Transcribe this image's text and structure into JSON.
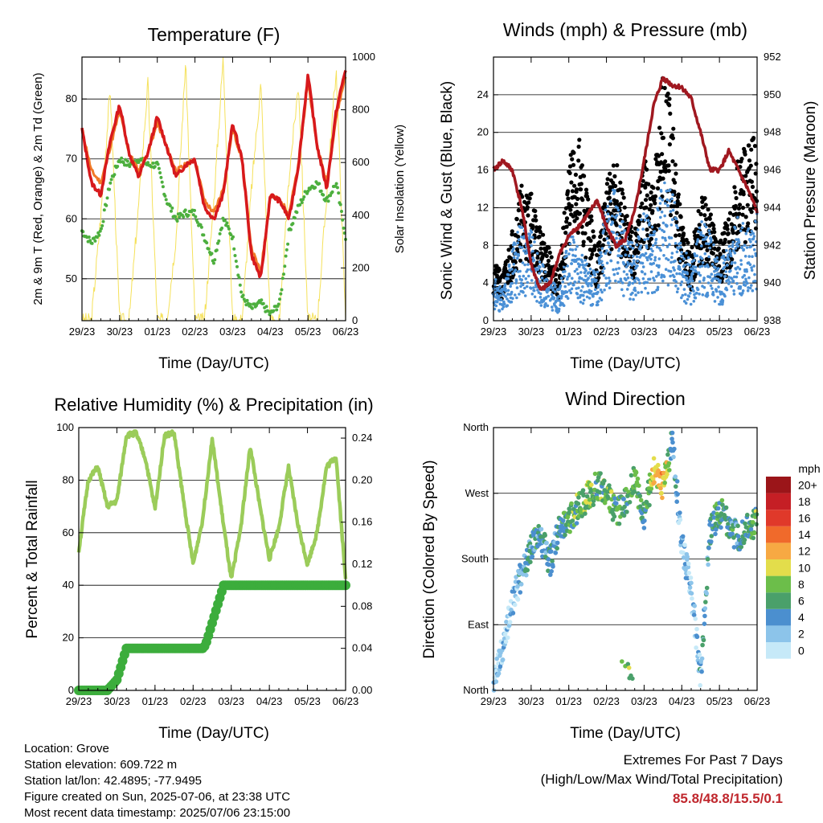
{
  "days": [
    "29/23",
    "30/23",
    "01/23",
    "02/23",
    "03/23",
    "04/23",
    "05/23",
    "06/23"
  ],
  "colors": {
    "temp2m": "#d7191c",
    "temp9m": "#f07a28",
    "dew": "#4daf3e",
    "solar": "#f5e15a",
    "wind": "#4a90d6",
    "gust": "#000000",
    "pressure": "#a01820",
    "rh": "#9bcc5a",
    "precip": "#3cad3c"
  },
  "panels": {
    "temperature": {
      "title": "Temperature (F)",
      "xlabel": "Time (Day/UTC)",
      "ylabel_left": "2m & 9m T (Red, Orange) & 2m Td (Green)",
      "ylabel_right": "Solar Insolation (Yellow)",
      "left_ticks": [
        "50",
        "60",
        "70",
        "80"
      ],
      "right_ticks": [
        "0",
        "200",
        "400",
        "600",
        "800",
        "1000"
      ]
    },
    "winds": {
      "title": "Winds (mph) & Pressure (mb)",
      "xlabel": "Time (Day/UTC)",
      "ylabel_left": "Sonic Wind & Gust (Blue, Black)",
      "ylabel_right": "Station Pressure (Maroon)",
      "left_ticks": [
        "0",
        "4",
        "8",
        "12",
        "16",
        "20",
        "24"
      ],
      "right_ticks": [
        "938",
        "940",
        "942",
        "944",
        "946",
        "948",
        "950",
        "952"
      ]
    },
    "humidity": {
      "title": "Relative Humidity (%) & Precipitation (in)",
      "xlabel": "Time (Day/UTC)",
      "ylabel_left": "Percent & Total Rainfall",
      "left_ticks": [
        "0",
        "20",
        "40",
        "60",
        "80",
        "100"
      ],
      "right_ticks": [
        "0.00",
        "0.04",
        "0.08",
        "0.12",
        "0.16",
        "0.20",
        "0.24"
      ]
    },
    "direction": {
      "title": "Wind Direction",
      "xlabel": "Time (Day/UTC)",
      "ylabel_left": "Direction (Colored By Speed)",
      "left_ticks": [
        "North",
        "East",
        "South",
        "West",
        "North"
      ],
      "legend_title": "mph",
      "legend_labels": [
        "0",
        "2",
        "4",
        "6",
        "8",
        "10",
        "12",
        "14",
        "16",
        "18",
        "20+"
      ],
      "legend_colors": [
        "#c6e9f8",
        "#8cc4ea",
        "#4b8fcf",
        "#4aa06a",
        "#6cbe4a",
        "#e3dd4b",
        "#f7a943",
        "#f06a2b",
        "#e0392a",
        "#c51f25",
        "#9b1519"
      ]
    }
  },
  "chart_data": [
    {
      "type": "line",
      "title": "Temperature (F)",
      "xlabel": "Time (Day/UTC)",
      "ylabel": "2m & 9m T (Red, Orange) & 2m Td (Green)",
      "ylabel_right": "Solar Insolation (Yellow)",
      "x": [
        0,
        0.25,
        0.5,
        0.75,
        1,
        1.25,
        1.5,
        1.75,
        2,
        2.25,
        2.5,
        2.75,
        3,
        3.25,
        3.5,
        3.75,
        4,
        4.25,
        4.5,
        4.75,
        5,
        5.25,
        5.5,
        5.75,
        6,
        6.25,
        6.5,
        6.75,
        7
      ],
      "ylim": [
        43,
        87
      ],
      "ylim_right": [
        0,
        1000
      ],
      "series": [
        {
          "name": "2m T",
          "values": [
            75,
            66,
            64,
            73,
            79,
            71,
            67,
            71,
            77,
            72,
            67,
            69,
            70,
            62,
            60,
            64,
            76,
            70,
            54,
            50,
            64,
            63,
            60,
            69,
            84,
            72,
            65,
            78,
            85
          ]
        },
        {
          "name": "9m T",
          "values": [
            75,
            68,
            66,
            72,
            78,
            71,
            68,
            71,
            76,
            72,
            68,
            69,
            70,
            63,
            61,
            65,
            75,
            70,
            55,
            51,
            64,
            63,
            61,
            69,
            83,
            72,
            66,
            77,
            84
          ]
        },
        {
          "name": "2m Td",
          "values": [
            58,
            56,
            58,
            66,
            70,
            69,
            70,
            69,
            69,
            63,
            60,
            61,
            61,
            57,
            53,
            60,
            57,
            47,
            45,
            46,
            44,
            46,
            58,
            62,
            65,
            66,
            63,
            66,
            57
          ]
        },
        {
          "name": "Solar Insolation",
          "values": [
            0,
            0,
            400,
            880,
            0,
            0,
            430,
            900,
            0,
            0,
            320,
            980,
            0,
            0,
            450,
            1000,
            0,
            0,
            500,
            900,
            0,
            0,
            550,
            900,
            0,
            0,
            480,
            960,
            0
          ]
        }
      ]
    },
    {
      "type": "scatter",
      "title": "Winds (mph) & Pressure (mb)",
      "xlabel": "Time (Day/UTC)",
      "ylabel": "Sonic Wind & Gust (Blue, Black)",
      "ylabel_right": "Station Pressure (Maroon)",
      "x": [
        0,
        0.25,
        0.5,
        0.75,
        1,
        1.25,
        1.5,
        1.75,
        2,
        2.25,
        2.5,
        2.75,
        3,
        3.25,
        3.5,
        3.75,
        4,
        4.25,
        4.5,
        4.75,
        5,
        5.25,
        5.5,
        5.75,
        6,
        6.25,
        6.5,
        6.75,
        7
      ],
      "ylim": [
        0,
        28
      ],
      "ylim_right": [
        938,
        952
      ],
      "series": [
        {
          "name": "Sonic Wind",
          "values": [
            3,
            2,
            5,
            7,
            6,
            4,
            3,
            2,
            6,
            5,
            4,
            3,
            8,
            9,
            6,
            5,
            8,
            6,
            10,
            9,
            5,
            4,
            7,
            6,
            4,
            5,
            7,
            6,
            8
          ]
        },
        {
          "name": "Gust",
          "values": [
            5,
            4,
            8,
            12,
            11,
            8,
            6,
            4,
            14,
            16,
            11,
            6,
            12,
            14,
            10,
            8,
            14,
            12,
            22,
            18,
            9,
            6,
            11,
            10,
            7,
            9,
            14,
            15,
            16
          ]
        },
        {
          "name": "Station Pressure",
          "values": [
            946,
            946.5,
            946,
            944,
            941,
            939.6,
            940,
            941.5,
            942.5,
            943,
            943.6,
            944.4,
            943,
            942,
            942.3,
            943.8,
            946.5,
            949.4,
            950.9,
            950.5,
            950.4,
            949.8,
            948,
            946,
            946,
            947,
            946,
            945,
            943.8
          ]
        }
      ]
    },
    {
      "type": "line",
      "title": "Relative Humidity (%) & Precipitation (in)",
      "xlabel": "Time (Day/UTC)",
      "ylabel": "Percent & Total Rainfall",
      "x": [
        0,
        0.25,
        0.5,
        0.75,
        1,
        1.25,
        1.5,
        1.75,
        2,
        2.25,
        2.5,
        2.75,
        3,
        3.25,
        3.5,
        3.75,
        4,
        4.25,
        4.5,
        4.75,
        5,
        5.25,
        5.5,
        5.75,
        6,
        6.25,
        6.5,
        6.75,
        7
      ],
      "ylim": [
        0,
        100
      ],
      "ylim_right": [
        0,
        0.25
      ],
      "series": [
        {
          "name": "Relative Humidity",
          "values": [
            53,
            80,
            85,
            70,
            72,
            97,
            98,
            88,
            69,
            97,
            98,
            72,
            48,
            65,
            96,
            68,
            42,
            62,
            93,
            70,
            50,
            62,
            85,
            63,
            48,
            60,
            85,
            89,
            42
          ]
        },
        {
          "name": "Total Precipitation",
          "values": [
            0,
            0,
            0,
            0,
            0.01,
            0.04,
            0.04,
            0.04,
            0.04,
            0.04,
            0.04,
            0.04,
            0.04,
            0.04,
            0.05,
            0.1,
            0.1,
            0.1,
            0.1,
            0.1,
            0.1,
            0.1,
            0.1,
            0.1,
            0.1,
            0.1,
            0.1,
            0.1,
            0.1
          ]
        }
      ]
    },
    {
      "type": "scatter",
      "title": "Wind Direction",
      "xlabel": "Time (Day/UTC)",
      "ylabel": "Direction (Colored By Speed)",
      "x": [
        0,
        0.25,
        0.5,
        0.75,
        1,
        1.25,
        1.5,
        1.75,
        2,
        2.25,
        2.5,
        2.75,
        3,
        3.25,
        3.5,
        3.75,
        4,
        4.25,
        4.5,
        4.75,
        5,
        5.25,
        5.5,
        5.75,
        6,
        6.25,
        6.5,
        6.75,
        7
      ],
      "ylim": [
        0,
        360
      ],
      "series": [
        {
          "name": "Wind Direction",
          "values": [
            5,
            60,
            120,
            160,
            195,
            210,
            175,
            220,
            235,
            250,
            265,
            280,
            275,
            240,
            255,
            290,
            240,
            300,
            280,
            340,
            200,
            140,
            20,
            220,
            245,
            230,
            205,
            225,
            230
          ]
        },
        {
          "name": "Wind Speed",
          "values": [
            2,
            2,
            3,
            4,
            6,
            6,
            5,
            6,
            8,
            8,
            9,
            7,
            9,
            7,
            8,
            9,
            6,
            11,
            13,
            5,
            3,
            2,
            4,
            6,
            7,
            6,
            5,
            7,
            8
          ]
        }
      ]
    }
  ],
  "info": {
    "location": "Location: Grove",
    "elevation": "Station elevation: 609.722 m",
    "latlon": "Station lat/lon: 42.4895; -77.9495",
    "created": "Figure created on Sun, 2025-07-06, at 23:38 UTC",
    "recent": "Most recent data timestamp: 2025/07/06 23:15:00"
  },
  "extremes": {
    "title": "Extremes For Past 7 Days",
    "subtitle": "(High/Low/Max Wind/Total Precipitation)",
    "values": "85.8/48.8/15.5/0.1"
  }
}
